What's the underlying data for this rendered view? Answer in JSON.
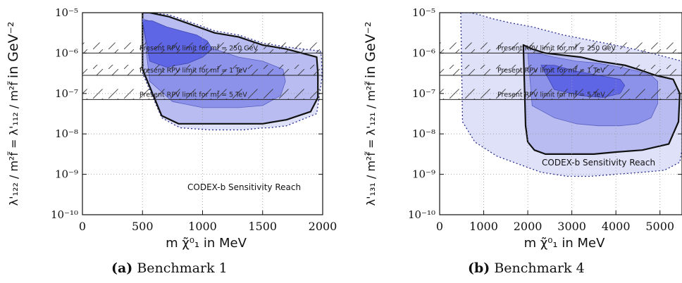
{
  "figures": [
    {
      "tag": "(a)",
      "caption": "Benchmark 1",
      "ylabel_lhs": "λ'₁₂₂ / m²f̃ = λ'₁₁₂ / m²f̃",
      "ylabel_unit": "in GeV⁻²",
      "xlabel": "m χ̃⁰₁ in MeV",
      "annotation": "CODEX-b Sensitivity Reach",
      "hatch_labels": [
        "Present RPV limit for mf̃ = 250 GeV",
        "Present RPV limit for mf̃ = 1 TeV",
        "Present RPV limit for mf̃ = 5 TeV"
      ]
    },
    {
      "tag": "(b)",
      "caption": "Benchmark 4",
      "ylabel_lhs": "λ'₁₃₁ / m²f̃ = λ'₁₂₁ / m²f̃",
      "ylabel_unit": "in GeV⁻²",
      "xlabel": "m χ̃⁰₁ in MeV",
      "annotation": "CODEX-b Sensitivity Reach",
      "hatch_labels": [
        "Present RPV limit for mf̃ = 250 GeV",
        "Present RPV limit for mf̃ = 1 TeV",
        "Present RPV limit for mf̃ = 5 TeV"
      ]
    }
  ],
  "chart_data": [
    {
      "type": "area",
      "xlim": [
        0,
        2000
      ],
      "ylim_log10": [
        -10,
        -5
      ],
      "x_ticks": [
        "0",
        "500",
        "1000",
        "1500",
        "2000"
      ],
      "y_ticks": [
        "10⁻¹⁰",
        "10⁻⁹",
        "10⁻⁸",
        "10⁻⁷",
        "10⁻⁶",
        "10⁻⁵"
      ],
      "grid": true,
      "limit_lines_log10": [
        -6.0,
        -6.55,
        -7.15
      ],
      "regions": [
        {
          "style": "outer-dotted",
          "x": [
            500,
            500,
            660,
            780,
            820,
            1060,
            1100,
            1300,
            1340,
            1500,
            1550,
            1700,
            1950,
            1995,
            1990,
            1980,
            1700,
            1500,
            1300,
            1100,
            960,
            720,
            560,
            500
          ],
          "y": [
            -5,
            -6.5,
            -7.6,
            -7.8,
            -7.85,
            -7.9,
            -7.9,
            -7.9,
            -7.9,
            -7.85,
            -7.85,
            -7.8,
            -7.5,
            -6.6,
            -6.1,
            -5.95,
            -5.85,
            -5.75,
            -5.55,
            -5.45,
            -5.3,
            -5.05,
            -5,
            -5
          ]
        },
        {
          "style": "solid-thick",
          "x": [
            500,
            500,
            660,
            800,
            1000,
            1300,
            1500,
            1700,
            1900,
            1960,
            1960,
            1950,
            1700,
            1500,
            1300,
            1100,
            960,
            720,
            560,
            500
          ],
          "y": [
            -5,
            -6.4,
            -7.55,
            -7.75,
            -7.75,
            -7.75,
            -7.75,
            -7.65,
            -7.45,
            -7.1,
            -6.5,
            -6.1,
            -5.9,
            -5.8,
            -5.6,
            -5.5,
            -5.35,
            -5.1,
            -5.0,
            -5
          ]
        },
        {
          "style": "level-2",
          "x": [
            500,
            560,
            750,
            1000,
            1300,
            1500,
            1650,
            1690,
            1670,
            1500,
            1300,
            1100,
            950,
            780,
            650,
            500
          ],
          "y": [
            -5.15,
            -6.7,
            -7.2,
            -7.35,
            -7.35,
            -7.3,
            -7.05,
            -6.7,
            -6.4,
            -6.2,
            -6.1,
            -5.9,
            -5.8,
            -5.6,
            -5.3,
            -5.15
          ]
        },
        {
          "style": "level-3",
          "x": [
            500,
            560,
            700,
            880,
            1000,
            1080,
            1040,
            950,
            820,
            700,
            580,
            500
          ],
          "y": [
            -5.2,
            -6.2,
            -6.35,
            -6.25,
            -6.1,
            -5.9,
            -5.7,
            -5.55,
            -5.45,
            -5.35,
            -5.2,
            -5.2
          ]
        }
      ]
    },
    {
      "type": "area",
      "xlim": [
        0,
        5500
      ],
      "ylim_log10": [
        -10,
        -5
      ],
      "x_ticks": [
        "0",
        "1000",
        "2000",
        "3000",
        "4000",
        "5000"
      ],
      "y_ticks": [
        "10⁻¹⁰",
        "10⁻⁹",
        "10⁻⁸",
        "10⁻⁷",
        "10⁻⁶",
        "10⁻⁵"
      ],
      "grid": true,
      "limit_lines_log10": [
        -6.0,
        -6.55,
        -7.15
      ],
      "regions": [
        {
          "style": "outer-dotted",
          "x": [
            480,
            520,
            800,
            1300,
            1800,
            2300,
            2900,
            3400,
            4000,
            4600,
            5100,
            5450,
            5500,
            5500,
            4800,
            4200,
            3500,
            2800,
            2100,
            1600,
            1200,
            900,
            700,
            480
          ],
          "y": [
            -5,
            -7.7,
            -8.2,
            -8.55,
            -8.75,
            -8.95,
            -9.05,
            -9.05,
            -9.0,
            -8.95,
            -8.9,
            -8.7,
            -8.4,
            -6.2,
            -6.0,
            -5.85,
            -5.7,
            -5.55,
            -5.35,
            -5.25,
            -5.15,
            -5.05,
            -5.0,
            -5
          ]
        },
        {
          "style": "solid-thick",
          "x": [
            1900,
            1950,
            2000,
            2150,
            2400,
            3000,
            3500,
            4000,
            4600,
            5200,
            5420,
            5450,
            5300,
            4900,
            4500,
            4200,
            3900,
            3600,
            3200,
            2800,
            2400,
            2100,
            1900
          ],
          "y": [
            -5.8,
            -7.8,
            -8.2,
            -8.4,
            -8.5,
            -8.5,
            -8.5,
            -8.45,
            -8.4,
            -8.25,
            -7.7,
            -7.0,
            -6.65,
            -6.55,
            -6.4,
            -6.3,
            -6.25,
            -6.2,
            -6.1,
            -6.05,
            -6.0,
            -5.9,
            -5.8
          ]
        },
        {
          "style": "level-2",
          "x": [
            2000,
            2100,
            2600,
            3100,
            3600,
            4100,
            4500,
            4800,
            4950,
            4950,
            4800,
            4500,
            4100,
            3600,
            3100,
            2600,
            2200,
            2000
          ],
          "y": [
            -6.0,
            -7.3,
            -7.6,
            -7.75,
            -7.8,
            -7.8,
            -7.75,
            -7.6,
            -7.25,
            -6.7,
            -6.55,
            -6.45,
            -6.35,
            -6.25,
            -6.2,
            -6.1,
            -6.0,
            -6.0
          ]
        },
        {
          "style": "level-3",
          "x": [
            2300,
            2600,
            3200,
            3700,
            4100,
            4200,
            4100,
            3600,
            3100,
            2600,
            2300
          ],
          "y": [
            -6.3,
            -6.9,
            -7.05,
            -7.1,
            -7.0,
            -6.8,
            -6.65,
            -6.55,
            -6.45,
            -6.3,
            -6.3
          ]
        }
      ]
    }
  ]
}
